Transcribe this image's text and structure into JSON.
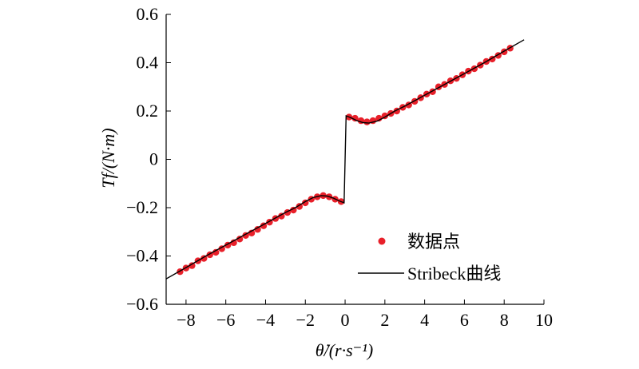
{
  "chart_data": {
    "type": "scatter",
    "xlabel": "θ̇/(r·s⁻¹)",
    "ylabel": "Tf/(N·m)",
    "xlim": [
      -9,
      10
    ],
    "ylim": [
      -0.6,
      0.6
    ],
    "x_ticks": [
      -8,
      -6,
      -4,
      -2,
      0,
      2,
      4,
      6,
      8,
      10
    ],
    "x_tick_labels": [
      "−8",
      "−6",
      "−4",
      "−2",
      "0",
      "2",
      "4",
      "6",
      "8",
      "10"
    ],
    "y_ticks": [
      0.6,
      0.4,
      0.2,
      0,
      -0.2,
      -0.4,
      -0.6
    ],
    "y_tick_labels": [
      "0.6",
      "0.4",
      "0.2",
      "0",
      "−0.2",
      "−0.4",
      "−0.6"
    ],
    "grid": false,
    "legend_position": "bottom-right",
    "colors": {
      "points": "#e8202a",
      "curve": "#000000"
    },
    "series": [
      {
        "name": "数据点",
        "kind": "scatter",
        "x": [
          -8.3,
          -8.0,
          -7.7,
          -7.4,
          -7.1,
          -6.8,
          -6.5,
          -6.2,
          -5.9,
          -5.6,
          -5.3,
          -5.0,
          -4.7,
          -4.4,
          -4.1,
          -3.8,
          -3.5,
          -3.2,
          -2.9,
          -2.6,
          -2.3,
          -2.0,
          -1.7,
          -1.4,
          -1.1,
          -0.8,
          -0.5,
          -0.2,
          0.2,
          0.5,
          0.8,
          1.1,
          1.4,
          1.7,
          2.0,
          2.3,
          2.6,
          2.9,
          3.2,
          3.5,
          3.8,
          4.1,
          4.4,
          4.7,
          5.0,
          5.3,
          5.6,
          5.9,
          6.2,
          6.5,
          6.8,
          7.1,
          7.4,
          7.7,
          8.0,
          8.3
        ],
        "y": [
          -0.465,
          -0.45,
          -0.44,
          -0.42,
          -0.41,
          -0.395,
          -0.385,
          -0.37,
          -0.355,
          -0.345,
          -0.33,
          -0.315,
          -0.305,
          -0.29,
          -0.275,
          -0.26,
          -0.245,
          -0.235,
          -0.22,
          -0.21,
          -0.195,
          -0.18,
          -0.165,
          -0.155,
          -0.15,
          -0.155,
          -0.165,
          -0.175,
          0.175,
          0.17,
          0.16,
          0.155,
          0.16,
          0.17,
          0.18,
          0.19,
          0.2,
          0.215,
          0.225,
          0.24,
          0.255,
          0.27,
          0.28,
          0.3,
          0.31,
          0.325,
          0.335,
          0.35,
          0.365,
          0.375,
          0.39,
          0.405,
          0.415,
          0.43,
          0.445,
          0.46
        ]
      },
      {
        "name": "Stribeck曲线",
        "kind": "line",
        "x": [
          -9.0,
          -8.0,
          -7.0,
          -6.0,
          -5.0,
          -4.0,
          -3.0,
          -2.5,
          -2.0,
          -1.6,
          -1.2,
          -0.9,
          -0.6,
          -0.3,
          -0.05,
          0.05,
          0.3,
          0.6,
          0.9,
          1.2,
          1.6,
          2.0,
          2.5,
          3.0,
          4.0,
          5.0,
          6.0,
          7.0,
          8.0,
          9.0
        ],
        "y": [
          -0.495,
          -0.448,
          -0.4,
          -0.355,
          -0.31,
          -0.265,
          -0.22,
          -0.2,
          -0.175,
          -0.158,
          -0.15,
          -0.152,
          -0.16,
          -0.172,
          -0.18,
          0.18,
          0.172,
          0.16,
          0.152,
          0.15,
          0.158,
          0.175,
          0.2,
          0.22,
          0.265,
          0.31,
          0.355,
          0.4,
          0.448,
          0.495
        ]
      }
    ]
  }
}
